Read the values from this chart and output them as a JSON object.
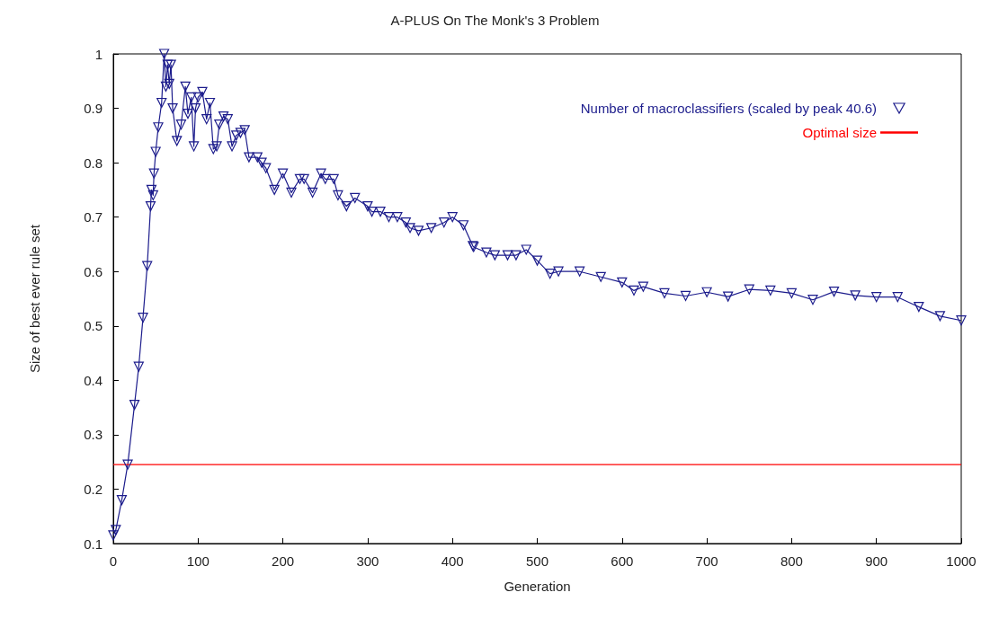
{
  "chart_data": {
    "type": "line",
    "title": "A-PLUS On The Monk's 3 Problem",
    "xlabel": "Generation",
    "ylabel": "Size of best ever rule set",
    "xlim": [
      0,
      1000
    ],
    "xticks": [
      0,
      100,
      200,
      300,
      400,
      500,
      600,
      700,
      800,
      900,
      1000
    ],
    "ylim": [
      0.1,
      1
    ],
    "yticks": [
      0.1,
      0.2,
      0.3,
      0.4,
      0.5,
      0.6,
      0.7,
      0.8,
      0.9,
      1
    ],
    "grid": false,
    "legend": "top right",
    "marker": "triangle",
    "line_style": "solid",
    "series": [
      {
        "name": "Number of macroclassifiers (scaled by peak 40.6)",
        "color": "#1c1c8c",
        "x": [
          0,
          3,
          10,
          17,
          25,
          30,
          35,
          40,
          44,
          45,
          47,
          48,
          50,
          53,
          57,
          60,
          62,
          64,
          66,
          68,
          70,
          75,
          80,
          85,
          88,
          92,
          95,
          97,
          100,
          105,
          110,
          114,
          118,
          122,
          125,
          130,
          135,
          140,
          145,
          150,
          155,
          160,
          170,
          175,
          180,
          190,
          200,
          210,
          220,
          225,
          235,
          245,
          250,
          260,
          265,
          275,
          285,
          300,
          305,
          315,
          325,
          335,
          345,
          350,
          360,
          375,
          390,
          400,
          413,
          424,
          425,
          440,
          450,
          465,
          475,
          487,
          500,
          515,
          525,
          550,
          575,
          600,
          614,
          625,
          650,
          675,
          700,
          725,
          750,
          775,
          800,
          825,
          850,
          875,
          900,
          925,
          950,
          975,
          1000
        ],
        "values": [
          0.115,
          0.125,
          0.18,
          0.245,
          0.355,
          0.425,
          0.515,
          0.61,
          0.72,
          0.75,
          0.74,
          0.78,
          0.82,
          0.865,
          0.91,
          1.0,
          0.94,
          0.98,
          0.945,
          0.98,
          0.9,
          0.84,
          0.87,
          0.94,
          0.89,
          0.92,
          0.83,
          0.9,
          0.92,
          0.93,
          0.88,
          0.91,
          0.825,
          0.83,
          0.87,
          0.885,
          0.88,
          0.83,
          0.85,
          0.855,
          0.86,
          0.81,
          0.81,
          0.8,
          0.79,
          0.75,
          0.78,
          0.745,
          0.77,
          0.77,
          0.745,
          0.78,
          0.77,
          0.77,
          0.74,
          0.72,
          0.735,
          0.72,
          0.71,
          0.71,
          0.7,
          0.7,
          0.69,
          0.68,
          0.675,
          0.68,
          0.69,
          0.7,
          0.685,
          0.647,
          0.645,
          0.635,
          0.63,
          0.63,
          0.63,
          0.64,
          0.62,
          0.596,
          0.6,
          0.6,
          0.59,
          0.58,
          0.565,
          0.572,
          0.56,
          0.555,
          0.562,
          0.554,
          0.567,
          0.565,
          0.56,
          0.548,
          0.563,
          0.556,
          0.553,
          0.553,
          0.535,
          0.518,
          0.51
        ]
      },
      {
        "name": "Optimal size",
        "color": "#ff0000",
        "type": "line",
        "marker": "none",
        "x": [
          0,
          1000
        ],
        "values": [
          0.245,
          0.245
        ]
      }
    ]
  }
}
